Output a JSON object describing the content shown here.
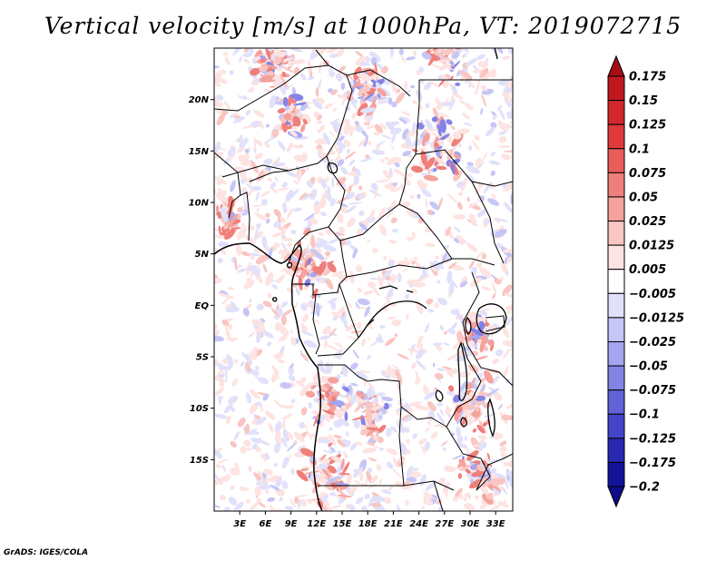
{
  "title": "Vertical velocity [m/s] at 1000hPa, VT: 2019072715",
  "credit": "GrADS: IGES/COLA",
  "map": {
    "lon_range": [
      0,
      35
    ],
    "lat_range": [
      -20,
      25
    ],
    "lat_ticks": [
      {
        "value": 20,
        "label": "20N"
      },
      {
        "value": 15,
        "label": "15N"
      },
      {
        "value": 10,
        "label": "10N"
      },
      {
        "value": 5,
        "label": "5N"
      },
      {
        "value": 0,
        "label": "EQ"
      },
      {
        "value": -5,
        "label": "5S"
      },
      {
        "value": -10,
        "label": "10S"
      },
      {
        "value": -15,
        "label": "15S"
      }
    ],
    "lon_ticks": [
      {
        "value": 3,
        "label": "3E"
      },
      {
        "value": 6,
        "label": "6E"
      },
      {
        "value": 9,
        "label": "9E"
      },
      {
        "value": 12,
        "label": "12E"
      },
      {
        "value": 15,
        "label": "15E"
      },
      {
        "value": 18,
        "label": "18E"
      },
      {
        "value": 21,
        "label": "21E"
      },
      {
        "value": 24,
        "label": "24E"
      },
      {
        "value": 27,
        "label": "27E"
      },
      {
        "value": 30,
        "label": "30E"
      },
      {
        "value": 33,
        "label": "33E"
      }
    ]
  },
  "colorbar": {
    "levels": [
      {
        "label": "0.175",
        "color": "#a50f15"
      },
      {
        "label": "0.15",
        "color": "#c0181f"
      },
      {
        "label": "0.125",
        "color": "#d2272c"
      },
      {
        "label": "0.1",
        "color": "#e0393c"
      },
      {
        "label": "0.075",
        "color": "#e85c5a"
      },
      {
        "label": "0.05",
        "color": "#ef7f7a"
      },
      {
        "label": "0.025",
        "color": "#f5a19c"
      },
      {
        "label": "0.0125",
        "color": "#f9c6c2"
      },
      {
        "label": "0.005",
        "color": "#fde3e1"
      },
      {
        "label": "−0.005",
        "color": "#ffffff"
      },
      {
        "label": "−0.0125",
        "color": "#e1e1fb"
      },
      {
        "label": "−0.025",
        "color": "#c6c6f6"
      },
      {
        "label": "−0.05",
        "color": "#a4a4f0"
      },
      {
        "label": "−0.075",
        "color": "#8383e6"
      },
      {
        "label": "−0.1",
        "color": "#6262d9"
      },
      {
        "label": "−0.125",
        "color": "#4444c8"
      },
      {
        "label": "−0.175",
        "color": "#2828b3"
      },
      {
        "label": "−0.2",
        "color": "#13139a"
      }
    ],
    "top_color": "#a50f15",
    "bottom_color": "#0c0c8a"
  }
}
